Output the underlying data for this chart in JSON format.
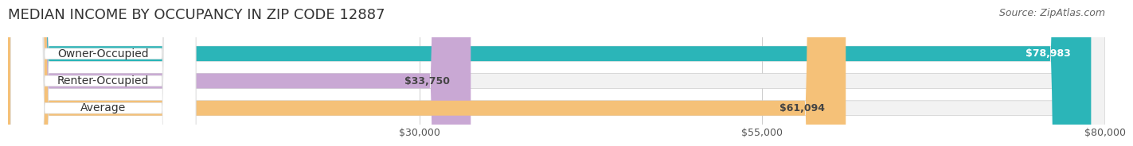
{
  "title": "MEDIAN INCOME BY OCCUPANCY IN ZIP CODE 12887",
  "source": "Source: ZipAtlas.com",
  "categories": [
    "Owner-Occupied",
    "Renter-Occupied",
    "Average"
  ],
  "values": [
    78983,
    33750,
    61094
  ],
  "bar_colors": [
    "#2bb5b8",
    "#c9a8d4",
    "#f5c178"
  ],
  "label_colors": [
    "#2bb5b8",
    "#c9a8d4",
    "#f5c178"
  ],
  "bar_bg_color": "#f0f0f0",
  "value_labels": [
    "$78,983",
    "$33,750",
    "$61,094"
  ],
  "xlim": [
    0,
    80000
  ],
  "xticks": [
    30000,
    55000,
    80000
  ],
  "xtick_labels": [
    "$30,000",
    "$55,000",
    "$80,000"
  ],
  "title_fontsize": 13,
  "source_fontsize": 9,
  "bar_label_fontsize": 10,
  "value_fontsize": 9,
  "background_color": "#ffffff"
}
